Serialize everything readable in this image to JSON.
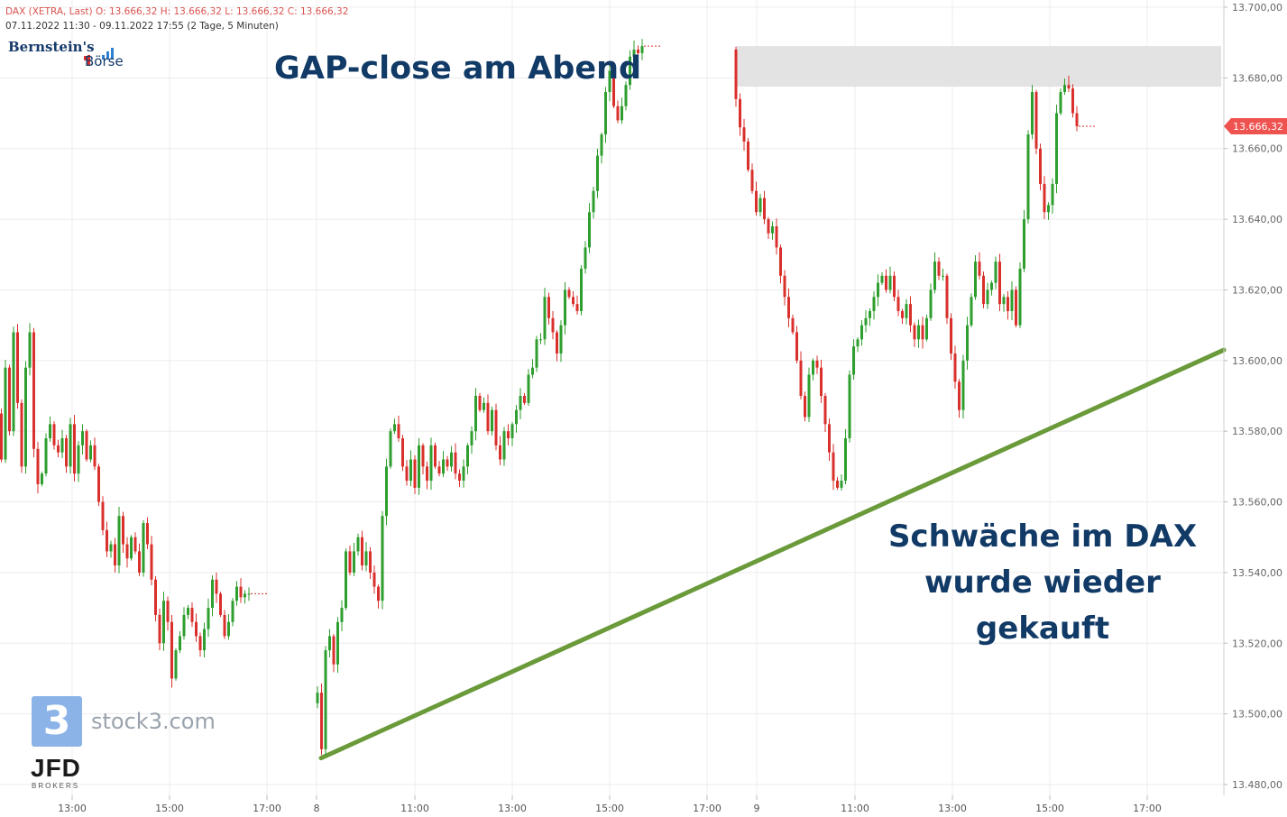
{
  "header": {
    "line1": "DAX (XETRA, Last)  O: 13.666,32  H: 13.666,32  L: 13.666,32  C: 13.666,32",
    "line2": "07.11.2022 11:30 - 09.11.2022 17:55   (2 Tage, 5 Minuten)"
  },
  "logo": {
    "top": "Bernstein's",
    "bottom": "Börse"
  },
  "annotations": {
    "gap_title": "GAP-close am Abend",
    "note_lines": [
      "Schwäche im DAX",
      "wurde wieder",
      "gekauft"
    ]
  },
  "watermark": {
    "digit": "3",
    "site": "stock3.com",
    "broker": "JFD",
    "broker_sub": "BROKERS"
  },
  "colors": {
    "up": "#2e9e2e",
    "down": "#d9302c",
    "trendline": "#6a9a3a",
    "gap_zone": "#e3e3e3",
    "grid": "#ececec",
    "price_tag": "#ef5350",
    "annotation": "#113a66"
  },
  "chart_data": {
    "type": "candlestick",
    "title": "DAX (XETRA, Last)",
    "interval": "5 Minuten",
    "ylim": [
      13475,
      13702
    ],
    "y_ticks": [
      {
        "value": 13480,
        "label": "13.480,00"
      },
      {
        "value": 13500,
        "label": "13.500,00"
      },
      {
        "value": 13520,
        "label": "13.520,00"
      },
      {
        "value": 13540,
        "label": "13.540,00"
      },
      {
        "value": 13560,
        "label": "13.560,00"
      },
      {
        "value": 13580,
        "label": "13.580,00"
      },
      {
        "value": 13600,
        "label": "13.600,00"
      },
      {
        "value": 13620,
        "label": "13.620,00"
      },
      {
        "value": 13640,
        "label": "13.640,00"
      },
      {
        "value": 13660,
        "label": "13.660,00"
      },
      {
        "value": 13680,
        "label": "13.680,00"
      },
      {
        "value": 13700,
        "label": "13.700,00"
      }
    ],
    "x_ticks": [
      "13:00",
      "15:00",
      "17:00",
      "8",
      "11:00",
      "13:00",
      "15:00",
      "17:00",
      "9",
      "11:00",
      "13:00",
      "15:00",
      "17:00"
    ],
    "last_price": {
      "value": 13666.32,
      "label": "13.666,32"
    },
    "gap_zone": {
      "from": 13677.5,
      "to": 13689
    },
    "trendline": {
      "from_price": 13487.5,
      "to_price": 13603
    },
    "days": [
      {
        "date": "07.11.2022",
        "closes": [
          13585,
          13572,
          13598,
          13580,
          13608,
          13588,
          13570,
          13598,
          13608,
          13575,
          13565,
          13568,
          13578,
          13582,
          13576,
          13574,
          13578,
          13570,
          13582,
          13568,
          13576,
          13580,
          13572,
          13576,
          13570,
          13560,
          13552,
          13546,
          13548,
          13542,
          13556,
          13548,
          13544,
          13550,
          13546,
          13540,
          13554,
          13548,
          13538,
          13528,
          13520,
          13532,
          13526,
          13510,
          13518,
          13522,
          13528,
          13530,
          13526,
          13522,
          13518,
          13524,
          13530,
          13538,
          13534,
          13528,
          13522,
          13526,
          13532,
          13536,
          13533,
          13534,
          13534
        ]
      },
      {
        "date": "08.11.2022",
        "closes": [
          13506,
          13490,
          13518,
          13522,
          13514,
          13526,
          13530,
          13546,
          13540,
          13546,
          13550,
          13542,
          13546,
          13540,
          13536,
          13532,
          13556,
          13570,
          13580,
          13582,
          13578,
          13570,
          13566,
          13572,
          13564,
          13576,
          13570,
          13566,
          13576,
          13570,
          13568,
          13572,
          13570,
          13574,
          13568,
          13566,
          13570,
          13576,
          13580,
          13590,
          13586,
          13588,
          13580,
          13586,
          13576,
          13572,
          13580,
          13578,
          13582,
          13586,
          13590,
          13588,
          13596,
          13598,
          13606,
          13606,
          13618,
          13612,
          13608,
          13602,
          13610,
          13620,
          13618,
          13616,
          13614,
          13626,
          13632,
          13642,
          13648,
          13658,
          13664,
          13676,
          13682,
          13672,
          13668,
          13672,
          13678,
          13686,
          13688,
          13687,
          13689
        ]
      },
      {
        "date": "09.11.2022",
        "closes": [
          13674,
          13666,
          13662,
          13654,
          13648,
          13642,
          13646,
          13640,
          13636,
          13638,
          13632,
          13624,
          13618,
          13612,
          13608,
          13600,
          13590,
          13584,
          13596,
          13600,
          13598,
          13590,
          13582,
          13574,
          13566,
          13564,
          13566,
          13578,
          13596,
          13604,
          13606,
          13610,
          13612,
          13614,
          13618,
          13622,
          13624,
          13620,
          13624,
          13618,
          13614,
          13612,
          13616,
          13610,
          13606,
          13610,
          13606,
          13612,
          13620,
          13628,
          13624,
          13624,
          13612,
          13602,
          13594,
          13586,
          13600,
          13610,
          13618,
          13628,
          13624,
          13616,
          13620,
          13622,
          13628,
          13616,
          13618,
          13614,
          13620,
          13610,
          13626,
          13640,
          13664,
          13676,
          13660,
          13650,
          13642,
          13644,
          13650,
          13670,
          13676,
          13678,
          13677,
          13670,
          13666.32
        ]
      }
    ]
  }
}
